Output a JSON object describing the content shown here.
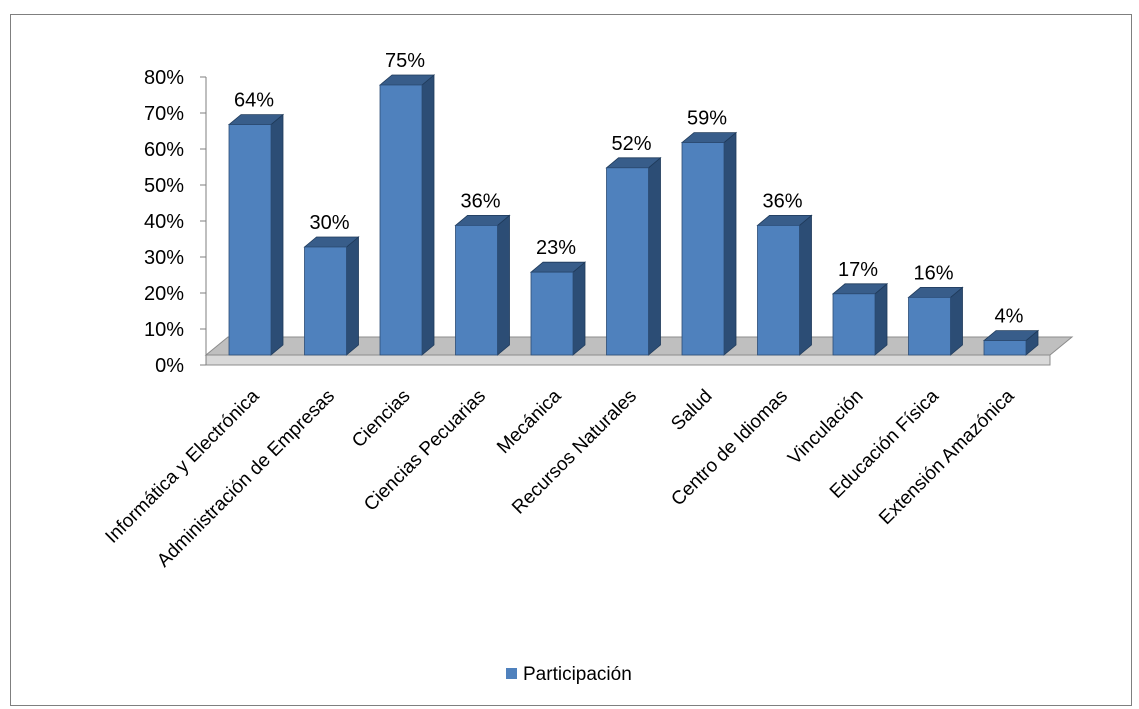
{
  "chart_data": {
    "type": "bar",
    "style": "3d-column",
    "categories": [
      "Informática y Electrónica",
      "Administración de Empresas",
      "Ciencias",
      "Ciencias Pecuarias",
      "Mecánica",
      "Recursos Naturales",
      "Salud",
      "Centro de Idiomas",
      "Vinculación",
      "Educación Física",
      "Extensión Amazónica"
    ],
    "series": [
      {
        "name": "Participación",
        "values": [
          64,
          30,
          75,
          36,
          23,
          52,
          59,
          36,
          17,
          16,
          4
        ],
        "labels": [
          "64%",
          "30%",
          "75%",
          "36%",
          "23%",
          "52%",
          "59%",
          "36%",
          "17%",
          "16%",
          "4%"
        ],
        "color": "#4f81bd"
      }
    ],
    "y_ticks": [
      "0%",
      "10%",
      "20%",
      "30%",
      "40%",
      "50%",
      "60%",
      "70%",
      "80%"
    ],
    "ylim": [
      0,
      80
    ],
    "grid": false,
    "legend_position": "bottom",
    "title": "",
    "xlabel": "",
    "ylabel": ""
  },
  "colors": {
    "bar_front": "#4f81bd",
    "bar_side": "#2c4d75",
    "bar_top": "#385d8a",
    "floor": "#bfbfbf"
  }
}
